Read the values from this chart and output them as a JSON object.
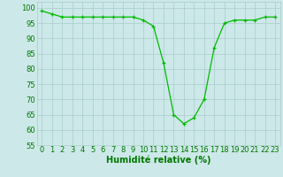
{
  "x": [
    0,
    1,
    2,
    3,
    4,
    5,
    6,
    7,
    8,
    9,
    10,
    11,
    12,
    13,
    14,
    15,
    16,
    17,
    18,
    19,
    20,
    21,
    22,
    23
  ],
  "y": [
    99,
    98,
    97,
    97,
    97,
    97,
    97,
    97,
    97,
    97,
    96,
    94,
    82,
    65,
    62,
    64,
    70,
    87,
    95,
    96,
    96,
    96,
    97,
    97
  ],
  "line_color": "#00bb00",
  "marker": "+",
  "marker_size": 3,
  "bg_color": "#cce8e8",
  "grid_color": "#aacccc",
  "xlabel": "Humidité relative (%)",
  "xlabel_color": "#007700",
  "xlabel_fontsize": 7,
  "tick_color": "#007700",
  "tick_fontsize": 6,
  "ylim": [
    55,
    102
  ],
  "xlim": [
    -0.5,
    23.5
  ],
  "yticks": [
    55,
    60,
    65,
    70,
    75,
    80,
    85,
    90,
    95,
    100
  ],
  "xticks": [
    0,
    1,
    2,
    3,
    4,
    5,
    6,
    7,
    8,
    9,
    10,
    11,
    12,
    13,
    14,
    15,
    16,
    17,
    18,
    19,
    20,
    21,
    22,
    23
  ]
}
